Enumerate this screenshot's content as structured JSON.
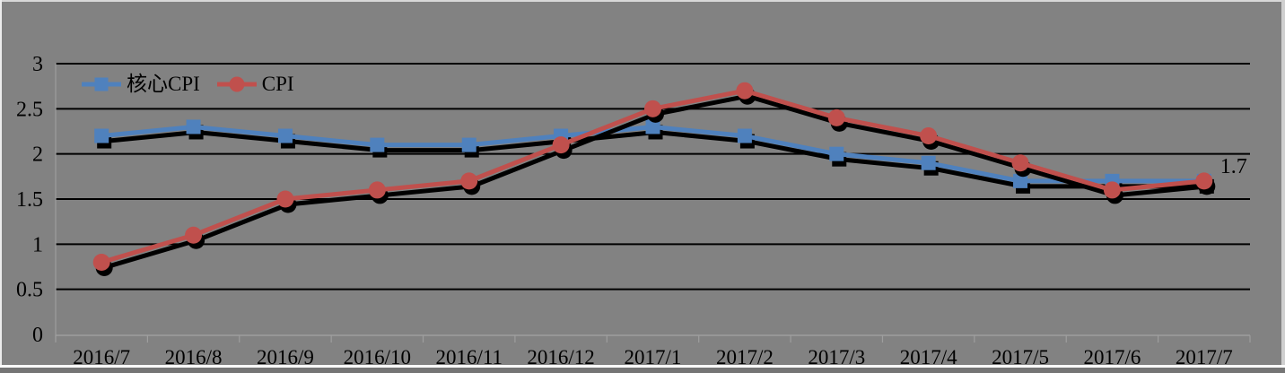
{
  "chart_data": {
    "type": "line",
    "title": "",
    "categories": [
      "2016/7",
      "2016/8",
      "2016/9",
      "2016/10",
      "2016/11",
      "2016/12",
      "2017/1",
      "2017/2",
      "2017/3",
      "2017/4",
      "2017/5",
      "2017/6",
      "2017/7"
    ],
    "series": [
      {
        "name": "核心CPI",
        "marker": "square",
        "color": "#4F81BD",
        "values": [
          2.2,
          2.3,
          2.2,
          2.1,
          2.1,
          2.2,
          2.3,
          2.2,
          2.0,
          1.9,
          1.7,
          1.7,
          1.7
        ]
      },
      {
        "name": "CPI",
        "marker": "circle",
        "color": "#C0504D",
        "values": [
          0.8,
          1.1,
          1.5,
          1.6,
          1.7,
          2.1,
          2.5,
          2.7,
          2.4,
          2.2,
          1.9,
          1.6,
          1.7
        ]
      }
    ],
    "y_ticks": [
      0,
      0.5,
      1,
      1.5,
      2,
      2.5,
      3
    ],
    "ylim": [
      0,
      3
    ],
    "xlabel": "",
    "ylabel": "",
    "grid": "horizontal",
    "legend_position": "top-left-inside",
    "annotation": {
      "text": "1.7",
      "series_index": 1,
      "point_index": 12
    },
    "style": {
      "background": "#828282",
      "gridline_color": "#000000",
      "axis_line_color": "#9E9E9E",
      "text_color": "#000000",
      "shadow_color": "#000000",
      "has_shadow": true
    }
  }
}
